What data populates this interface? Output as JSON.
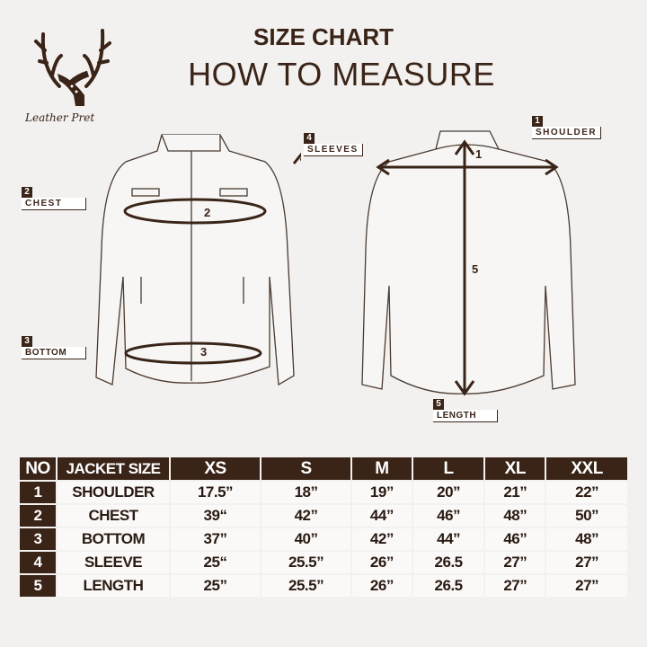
{
  "header": {
    "title": "SIZE CHART",
    "subtitle": "HOW TO MEASURE",
    "brand": "Leather Pret"
  },
  "colors": {
    "brand_brown": "#3a2418",
    "background": "#f3f1ef"
  },
  "labels": [
    {
      "no": "1",
      "text": "SHOULDER"
    },
    {
      "no": "2",
      "text": "CHEST"
    },
    {
      "no": "3",
      "text": "BOTTOM"
    },
    {
      "no": "4",
      "text": "SLEEVES"
    },
    {
      "no": "5",
      "text": "LENGTH"
    }
  ],
  "markers": {
    "front_chest": "2",
    "front_bottom": "3",
    "sleeve": "4",
    "back_shoulder": "1",
    "back_length": "5"
  },
  "table": {
    "headers": [
      "NO",
      "JACKET SIZE",
      "XS",
      "S",
      "M",
      "L",
      "XL",
      "XXL"
    ],
    "rows": [
      {
        "no": "1",
        "name": "SHOULDER",
        "values": [
          "17.5”",
          "18”",
          "19”",
          "20”",
          "21”",
          "22”"
        ]
      },
      {
        "no": "2",
        "name": "CHEST",
        "values": [
          "39“",
          "42”",
          "44”",
          "46”",
          "48”",
          "50”"
        ]
      },
      {
        "no": "3",
        "name": "BOTTOM",
        "values": [
          "37”",
          "40”",
          "42”",
          "44”",
          "46”",
          "48”"
        ]
      },
      {
        "no": "4",
        "name": "SLEEVE",
        "values": [
          "25“",
          "25.5”",
          "26”",
          "26.5",
          "27”",
          "27”"
        ]
      },
      {
        "no": "5",
        "name": "LENGTH",
        "values": [
          "25”",
          "25.5”",
          "26”",
          "26.5",
          "27”",
          "27”"
        ]
      }
    ]
  }
}
